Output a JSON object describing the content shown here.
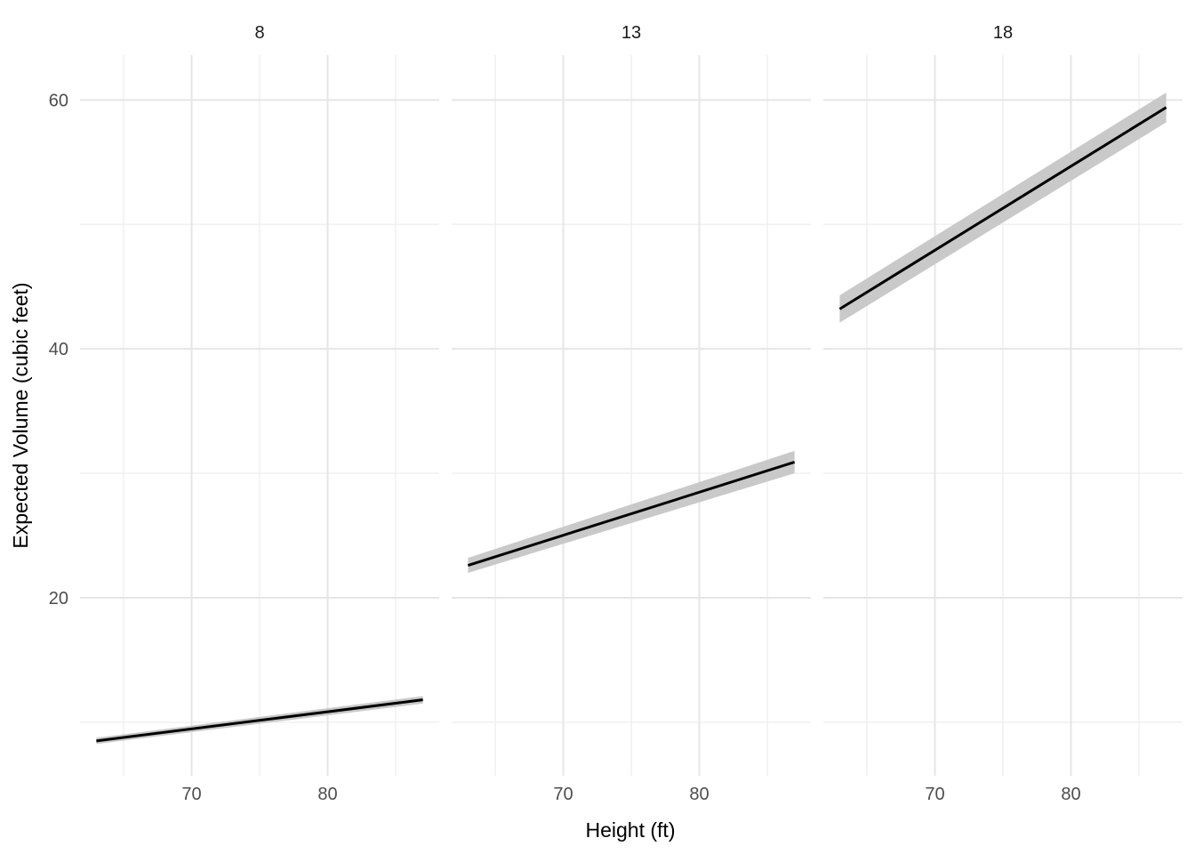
{
  "chart_data": {
    "type": "line",
    "title": "",
    "xlabel": "Height (ft)",
    "ylabel": "Expected Volume (cubic feet)",
    "facet_labels": [
      "8",
      "13",
      "18"
    ],
    "xlim": [
      61.8,
      88.2
    ],
    "ylim": [
      5.7,
      63.6
    ],
    "x_major_ticks": [
      70,
      80
    ],
    "x_minor_ticks": [
      65,
      75,
      85
    ],
    "y_major_ticks": [
      20,
      40,
      60
    ],
    "y_minor_ticks": [
      10,
      30,
      50
    ],
    "grid": "major-and-minor",
    "legend": "none",
    "series": [
      {
        "facet": "8",
        "x": [
          63,
          87
        ],
        "fit": [
          8.5,
          11.8
        ],
        "lower": [
          8.25,
          11.5
        ],
        "upper": [
          8.75,
          12.1
        ]
      },
      {
        "facet": "13",
        "x": [
          63,
          87
        ],
        "fit": [
          22.6,
          30.9
        ],
        "lower": [
          22.0,
          30.0
        ],
        "upper": [
          23.2,
          31.8
        ]
      },
      {
        "facet": "18",
        "x": [
          63,
          87
        ],
        "fit": [
          43.2,
          59.4
        ],
        "lower": [
          42.1,
          58.2
        ],
        "upper": [
          44.3,
          60.6
        ]
      }
    ],
    "colors": {
      "fit_line": "#000000",
      "ci_ribbon": "#c9c9c9",
      "grid_major": "#e6e6e6",
      "grid_minor": "#f0f0f0",
      "tick_text": "#4d4d4d",
      "strip_text": "#1a1a1a",
      "title_text": "#000000",
      "background": "#ffffff"
    }
  }
}
